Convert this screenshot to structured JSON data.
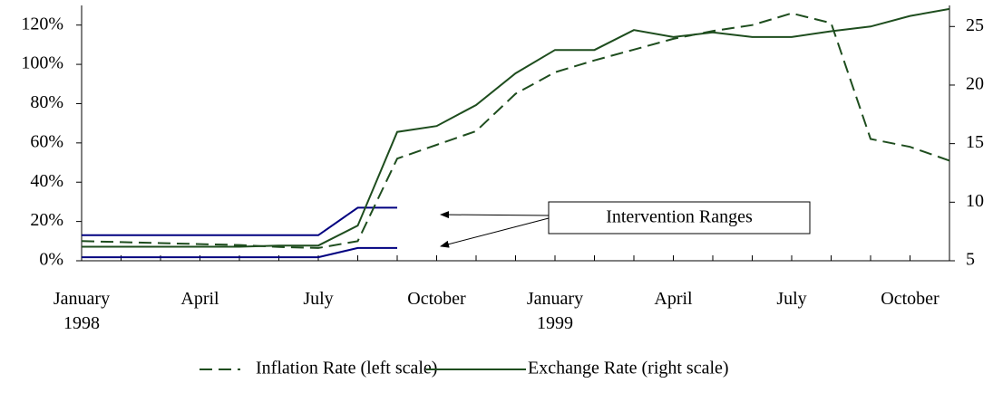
{
  "chart_data": {
    "type": "line",
    "categories": [
      "January\n1998",
      null,
      null,
      "April",
      null,
      null,
      "July",
      null,
      null,
      "October",
      null,
      null,
      "January\n1999",
      null,
      null,
      "April",
      null,
      null,
      "July",
      null,
      null,
      "October",
      null
    ],
    "ylim": [
      0,
      130
    ],
    "yticks": [
      {
        "value": 0,
        "label": "0%"
      },
      {
        "value": 20,
        "label": "20%"
      },
      {
        "value": 40,
        "label": "40%"
      },
      {
        "value": 60,
        "label": "60%"
      },
      {
        "value": 80,
        "label": "80%"
      },
      {
        "value": 100,
        "label": "100%"
      },
      {
        "value": 120,
        "label": "120%"
      }
    ],
    "y2lim": [
      5,
      26.8
    ],
    "y2ticks": [
      5,
      10,
      15,
      20,
      25
    ],
    "series": [
      {
        "name": "Inflation Rate (left scale)",
        "color": "#1e4d1e",
        "dash": true,
        "values": [
          10,
          9.5,
          9,
          8.5,
          8,
          7,
          6.5,
          10,
          52,
          59,
          66,
          85,
          96,
          102,
          107.5,
          113,
          117,
          120,
          126,
          121,
          62,
          58,
          51
        ]
      },
      {
        "name": "Exchange Rate (right scale)",
        "color": "#1e4d1e",
        "axis": "y2",
        "values": [
          6.2,
          6.2,
          6.2,
          6.2,
          6.2,
          6.3,
          6.3,
          8,
          16,
          16.5,
          18.3,
          21,
          23,
          23,
          24.7,
          24.1,
          24.5,
          24.1,
          24.1,
          24.6,
          25,
          25.9,
          26.5
        ]
      }
    ],
    "bands": [
      {
        "color": "#000080",
        "values": [
          13,
          13,
          13,
          13,
          13,
          13,
          13,
          27,
          27,
          null,
          null,
          null,
          null,
          null,
          null,
          null,
          null,
          null,
          null,
          null,
          null,
          null,
          null
        ]
      },
      {
        "color": "#000080",
        "values": [
          1.8,
          1.8,
          1.8,
          1.8,
          1.8,
          1.8,
          1.8,
          6.5,
          6.5,
          null,
          null,
          null,
          null,
          null,
          null,
          null,
          null,
          null,
          null,
          null,
          null,
          null,
          null
        ]
      }
    ],
    "annotation": "Intervention Ranges"
  }
}
